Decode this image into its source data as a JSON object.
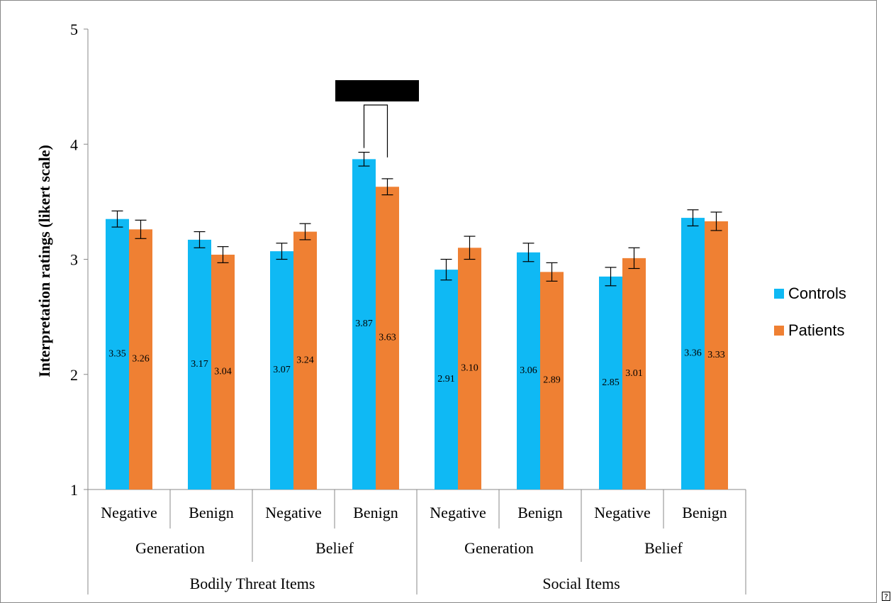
{
  "chart_data": {
    "type": "bar",
    "ylabel": "Interpretation ratings (likert scale)",
    "ylim": [
      1,
      5
    ],
    "yticks": [
      "1",
      "2",
      "3",
      "4",
      "5"
    ],
    "categories": [
      {
        "label": "Negative",
        "group": "Generation",
        "supergroup": "Bodily Threat Items"
      },
      {
        "label": "Benign",
        "group": "Generation",
        "supergroup": "Bodily Threat Items"
      },
      {
        "label": "Negative",
        "group": "Belief",
        "supergroup": "Bodily Threat Items"
      },
      {
        "label": "Benign",
        "group": "Belief",
        "supergroup": "Bodily Threat Items"
      },
      {
        "label": "Negative",
        "group": "Generation",
        "supergroup": "Social Items"
      },
      {
        "label": "Benign",
        "group": "Generation",
        "supergroup": "Social Items"
      },
      {
        "label": "Negative",
        "group": "Belief",
        "supergroup": "Social Items"
      },
      {
        "label": "Benign",
        "group": "Belief",
        "supergroup": "Social Items"
      }
    ],
    "groups": [
      "Generation",
      "Belief",
      "Generation",
      "Belief"
    ],
    "supergroups": [
      "Bodily Threat Items",
      "Social Items"
    ],
    "series": [
      {
        "name": "Controls",
        "color": "#0fb9f4",
        "values": [
          3.35,
          3.17,
          3.07,
          3.87,
          2.91,
          3.06,
          2.85,
          3.36
        ],
        "labels": [
          "3.35",
          "3.17",
          "3.07",
          "3.87",
          "2.91",
          "3.06",
          "2.85",
          "3.36"
        ],
        "error": [
          0.07,
          0.07,
          0.07,
          0.06,
          0.09,
          0.08,
          0.08,
          0.07
        ]
      },
      {
        "name": "Patients",
        "color": "#ef8033",
        "values": [
          3.26,
          3.04,
          3.24,
          3.63,
          3.1,
          2.89,
          3.01,
          3.33
        ],
        "labels": [
          "3.26",
          "3.04",
          "3.24",
          "3.63",
          "3.10",
          "2.89",
          "3.01",
          "3.33"
        ],
        "error": [
          0.08,
          0.07,
          0.07,
          0.07,
          0.1,
          0.08,
          0.09,
          0.08
        ]
      }
    ],
    "significance": {
      "between_category": 3
    },
    "grid": false,
    "legend_position": "right"
  }
}
